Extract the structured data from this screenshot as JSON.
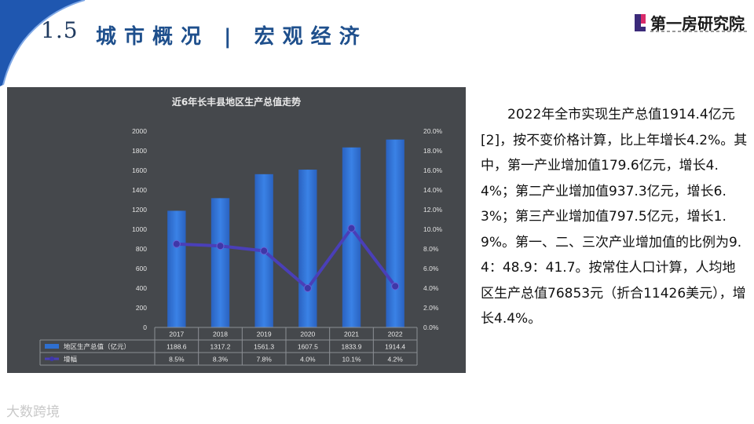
{
  "header": {
    "section_number": "1.5",
    "section_title": "城市概况 | 宏观经济",
    "logo_text": "第一房研究院"
  },
  "chart_data": {
    "type": "bar",
    "title": "近6年长丰县地区生产总值走势",
    "categories": [
      "2017",
      "2018",
      "2019",
      "2020",
      "2021",
      "2022"
    ],
    "series": [
      {
        "name": "地区生产总值（亿元）",
        "type": "bar",
        "axis": "left",
        "values": [
          1188.6,
          1317.2,
          1561.3,
          1607.5,
          1833.9,
          1914.4
        ],
        "labels": [
          "1188.6",
          "1317.2",
          "1561.3",
          "1607.5",
          "1833.9",
          "1914.4"
        ]
      },
      {
        "name": "增幅",
        "type": "line",
        "axis": "right",
        "values": [
          8.5,
          8.3,
          7.8,
          4.0,
          10.1,
          4.2
        ],
        "labels": [
          "8.5%",
          "8.3%",
          "7.8%",
          "4.0%",
          "10.1%",
          "4.2%"
        ]
      }
    ],
    "ylim": [
      0,
      2000
    ],
    "y2lim": [
      0,
      20
    ],
    "yticks": [
      "0",
      "200",
      "400",
      "600",
      "800",
      "1000",
      "1200",
      "1400",
      "1600",
      "1800",
      "2000"
    ],
    "y2ticks": [
      "0.0%",
      "2.0%",
      "4.0%",
      "6.0%",
      "8.0%",
      "10.0%",
      "12.0%",
      "14.0%",
      "16.0%",
      "18.0%",
      "20.0%"
    ],
    "legend": "data-table",
    "grid": false,
    "colors": {
      "bar": "#2e6fd0",
      "line": "#4a3fb8",
      "background": "#45484c"
    }
  },
  "description": "2022年全市实现生产总值1914.4亿元[2]，按不变价格计算，比上年增长4.2%。其中，第一产业增加值179.6亿元，增长4.4%；第二产业增加值937.3亿元，增长6.3%；第三产业增加值797.5亿元，增长1.9%。第一、二、三次产业增加值的比例为9.4：48.9：41.7。按常住人口计算，人均地区生产总值76853元（折合11426美元），增长4.4%。",
  "watermark": "大数跨境"
}
